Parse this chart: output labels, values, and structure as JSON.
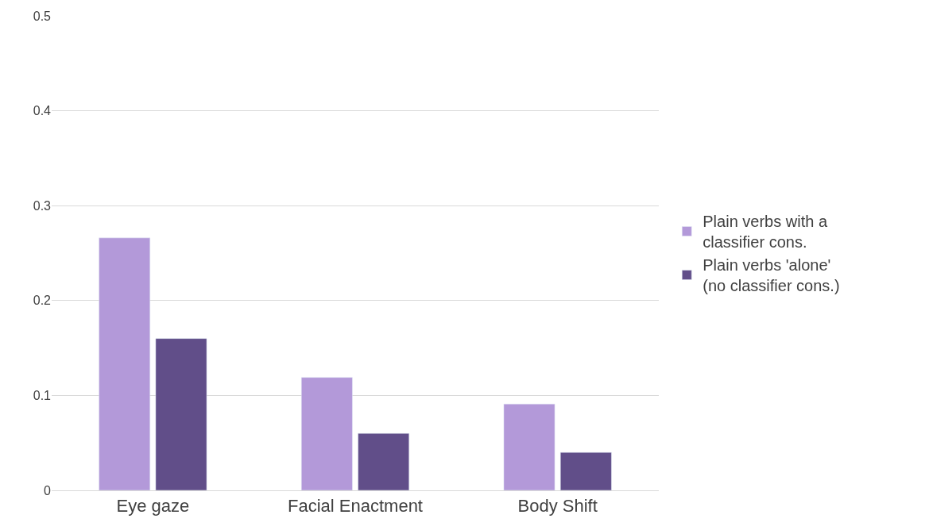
{
  "chart_data": {
    "type": "bar",
    "categories": [
      "Eye gaze",
      "Facial Enactment",
      "Body Shift"
    ],
    "series": [
      {
        "name": "Plain verbs with a classifier cons.",
        "color": "#b399d9",
        "values": [
          0.266,
          0.119,
          0.091
        ]
      },
      {
        "name": "Plain verbs 'alone' (no classifier cons.)",
        "color": "#614e89",
        "values": [
          0.16,
          0.06,
          0.04
        ]
      }
    ],
    "ylim": [
      0,
      0.5
    ],
    "yticks": [
      {
        "value": 0,
        "label": "0"
      },
      0.1,
      0.2,
      0.3,
      0.4,
      0.5
    ],
    "grid": "y",
    "legend": "right"
  }
}
